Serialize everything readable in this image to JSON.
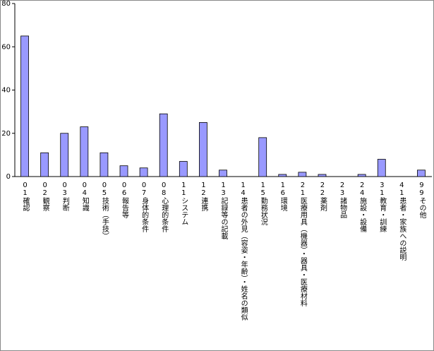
{
  "chart_data": {
    "type": "bar",
    "categories": [
      "01確認",
      "02観察",
      "03判断",
      "04知識",
      "05技術（手技）",
      "06報告等",
      "07身体的条件",
      "08心理的条件",
      "11システム",
      "12連携",
      "13記録等の記載",
      "14患者の外見（容姿・年齢）・姓名の類似",
      "15勤務状況",
      "16環境",
      "21医療用具（機器）・器具・医療材料",
      "22薬剤",
      "23諸物品",
      "24施設・設備",
      "31教育・訓練",
      "41患者・家族への説明",
      "99その他"
    ],
    "values": [
      65,
      11,
      20,
      23,
      11,
      5,
      4,
      29,
      7,
      25,
      3,
      0,
      18,
      1,
      2,
      1,
      0,
      1,
      8,
      0,
      3
    ],
    "color": "#9999ff",
    "ylim": [
      0,
      80
    ],
    "yticks": [
      0,
      20,
      40,
      60,
      80
    ],
    "grid": false
  }
}
